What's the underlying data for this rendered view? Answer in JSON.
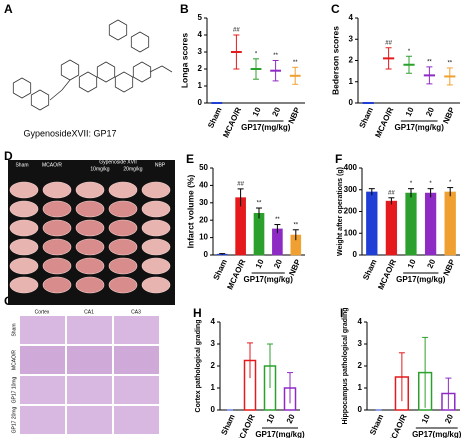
{
  "panels": {
    "A": {
      "letter": "A",
      "caption": "GypenosideXVII: GP17"
    },
    "D": {
      "letter": "D",
      "labels": [
        "Sham",
        "MCAO/R",
        "Gypenoside XVII",
        "10mg/kg",
        "20mg/kg",
        "NBP"
      ]
    },
    "G": {
      "letter": "G",
      "columns": [
        "Cortex",
        "CA1",
        "CA3"
      ],
      "rows": [
        "Sham",
        "MCAO/R",
        "GP17 10mg",
        "GP17 20mg"
      ]
    }
  },
  "chart_data": [
    {
      "type": "errorbar",
      "panel": "B",
      "ylabel": "Longa scores",
      "categories": [
        "Sham",
        "MCAO/R",
        "10",
        "20",
        "NBP"
      ],
      "group_label": "GP17(mg/kg)",
      "values": [
        0,
        3,
        2,
        1.9,
        1.6
      ],
      "errors": [
        0,
        1,
        0.6,
        0.6,
        0.5
      ],
      "annotations": [
        "##",
        "*",
        "**",
        "**"
      ],
      "colors": [
        "#1f3fd6",
        "#e41a1c",
        "#2ca02c",
        "#8e2bc4",
        "#f0a030"
      ],
      "ylim": [
        0,
        5
      ],
      "yticks": [
        0,
        1,
        2,
        3,
        4,
        5
      ]
    },
    {
      "type": "errorbar",
      "panel": "C",
      "ylabel": "Bederson scores",
      "categories": [
        "Sham",
        "MCAO/R",
        "10",
        "20",
        "NBP"
      ],
      "group_label": "GP17(mg/kg)",
      "values": [
        0,
        2.1,
        1.8,
        1.3,
        1.25
      ],
      "errors": [
        0,
        0.5,
        0.4,
        0.4,
        0.4
      ],
      "annotations": [
        "##",
        "*",
        "**",
        "**"
      ],
      "colors": [
        "#1f3fd6",
        "#e41a1c",
        "#2ca02c",
        "#8e2bc4",
        "#f0a030"
      ],
      "ylim": [
        0,
        4
      ],
      "yticks": [
        0,
        1,
        2,
        3,
        4
      ]
    },
    {
      "type": "bar",
      "panel": "E",
      "ylabel": "Infarct volume (%)",
      "categories": [
        "Sham",
        "MCAO/R",
        "10",
        "20",
        "NBP"
      ],
      "group_label": "GP17(mg/kg)",
      "values": [
        0.5,
        33,
        24,
        15,
        11.5
      ],
      "errors": [
        0.3,
        5,
        3,
        2.5,
        3
      ],
      "annotations": [
        null,
        "##",
        "**",
        "**",
        "**"
      ],
      "filled": true,
      "colors": [
        "#1f3fd6",
        "#e41a1c",
        "#2ca02c",
        "#8e2bc4",
        "#f0a030"
      ],
      "ylim": [
        0,
        50
      ],
      "yticks": [
        0,
        10,
        20,
        30,
        40,
        50
      ]
    },
    {
      "type": "bar",
      "panel": "F",
      "ylabel": "Weight after operations (g)",
      "categories": [
        "Sham",
        "MCAO/R",
        "10",
        "20",
        "NBP"
      ],
      "group_label": "GP17(mg/kg)",
      "values": [
        290,
        248,
        285,
        285,
        290
      ],
      "errors": [
        15,
        15,
        20,
        20,
        20
      ],
      "annotations": [
        null,
        "##",
        "*",
        "*",
        "*"
      ],
      "filled": true,
      "colors": [
        "#1f3fd6",
        "#e41a1c",
        "#2ca02c",
        "#8e2bc4",
        "#f0a030"
      ],
      "ylim": [
        0,
        400
      ],
      "yticks": [
        0,
        100,
        200,
        300,
        400
      ]
    },
    {
      "type": "bar",
      "panel": "H",
      "ylabel": "Cortex pathological grading",
      "categories": [
        "Sham",
        "MCAO/R",
        "10",
        "20"
      ],
      "group_label": "GP17(mg/kg)",
      "values": [
        0,
        2.25,
        2,
        1
      ],
      "errors": [
        0,
        0.8,
        1,
        0.7
      ],
      "filled": false,
      "colors": [
        "#1f3fd6",
        "#e41a1c",
        "#2ca02c",
        "#8e2bc4"
      ],
      "ylim": [
        0,
        4
      ],
      "yticks": [
        0,
        1,
        2,
        3,
        4
      ]
    },
    {
      "type": "bar",
      "panel": "I",
      "ylabel": "Hippocampus pathological grading",
      "categories": [
        "Sham",
        "MCAO/R",
        "10",
        "20"
      ],
      "group_label": "GP17(mg/kg)",
      "values": [
        0,
        1.5,
        1.7,
        0.75
      ],
      "errors": [
        0,
        1.1,
        1.6,
        0.7
      ],
      "filled": false,
      "colors": [
        "#1f3fd6",
        "#e41a1c",
        "#2ca02c",
        "#8e2bc4"
      ],
      "ylim": [
        0,
        4
      ],
      "yticks": [
        0,
        1,
        2,
        3,
        4
      ]
    }
  ]
}
